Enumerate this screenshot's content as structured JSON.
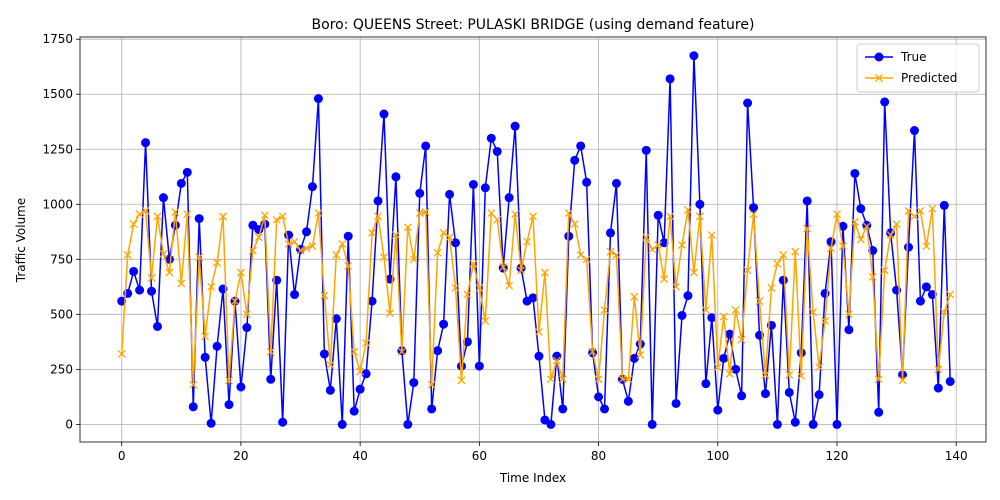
{
  "chart_data": {
    "type": "line",
    "title": "Boro: QUEENS Street: PULASKI BRIDGE (using demand feature)",
    "xlabel": "Time Index",
    "ylabel": "Traffic Volume",
    "xlim": [
      -7,
      145
    ],
    "ylim": [
      -80,
      1760
    ],
    "xticks": [
      0,
      20,
      40,
      60,
      80,
      100,
      120,
      140
    ],
    "yticks": [
      0,
      250,
      500,
      750,
      1000,
      1250,
      1500,
      1750
    ],
    "grid": true,
    "legend_position": "top-right",
    "series": [
      {
        "name": "True",
        "color": "#0000ff",
        "marker": "circle",
        "values": [
          560,
          595,
          695,
          610,
          1280,
          605,
          445,
          1030,
          750,
          905,
          1095,
          1145,
          80,
          935,
          305,
          5,
          355,
          615,
          90,
          560,
          170,
          440,
          905,
          885,
          910,
          205,
          655,
          10,
          860,
          590,
          795,
          875,
          1080,
          1480,
          320,
          155,
          480,
          0,
          855,
          60,
          160,
          230,
          560,
          1015,
          1410,
          660,
          1125,
          335,
          0,
          190,
          1050,
          1265,
          70,
          335,
          455,
          1045,
          825,
          265,
          375,
          1090,
          265,
          1075,
          1300,
          1240,
          710,
          1030,
          1355,
          710,
          560,
          575,
          310,
          20,
          0,
          310,
          70,
          855,
          1200,
          1265,
          1100,
          325,
          125,
          70,
          870,
          1095,
          205,
          105,
          300,
          365,
          1245,
          0,
          950,
          825,
          1570,
          95,
          495,
          585,
          1675,
          1000,
          185,
          485,
          65,
          300,
          410,
          250,
          130,
          1460,
          985,
          405,
          140,
          450,
          0,
          655,
          145,
          10,
          325,
          1015,
          0,
          135,
          595,
          830,
          0,
          900,
          430,
          1140,
          980,
          905,
          790,
          55,
          1465,
          870,
          610,
          225,
          805,
          1335,
          560,
          625,
          590,
          165,
          995,
          195
        ]
      },
      {
        "name": "Predicted",
        "color": "#ffa500",
        "marker": "x",
        "values": [
          320,
          770,
          910,
          955,
          970,
          665,
          945,
          775,
          690,
          965,
          640,
          955,
          180,
          760,
          400,
          625,
          735,
          945,
          200,
          560,
          690,
          500,
          790,
          850,
          950,
          330,
          930,
          945,
          820,
          830,
          790,
          800,
          810,
          960,
          585,
          270,
          770,
          820,
          720,
          330,
          240,
          370,
          870,
          945,
          760,
          505,
          860,
          330,
          895,
          750,
          960,
          965,
          180,
          780,
          870,
          850,
          620,
          200,
          590,
          730,
          620,
          470,
          960,
          930,
          715,
          630,
          955,
          700,
          830,
          945,
          420,
          690,
          205,
          290,
          205,
          960,
          910,
          770,
          750,
          330,
          205,
          520,
          785,
          770,
          205,
          205,
          580,
          315,
          850,
          795,
          815,
          660,
          945,
          625,
          815,
          975,
          690,
          945,
          520,
          860,
          260,
          490,
          230,
          520,
          385,
          700,
          955,
          560,
          225,
          620,
          730,
          770,
          225,
          785,
          220,
          890,
          510,
          260,
          470,
          800,
          955,
          810,
          500,
          920,
          840,
          900,
          670,
          205,
          700,
          860,
          910,
          200,
          970,
          945,
          970,
          810,
          980,
          250,
          510,
          590
        ]
      }
    ]
  }
}
